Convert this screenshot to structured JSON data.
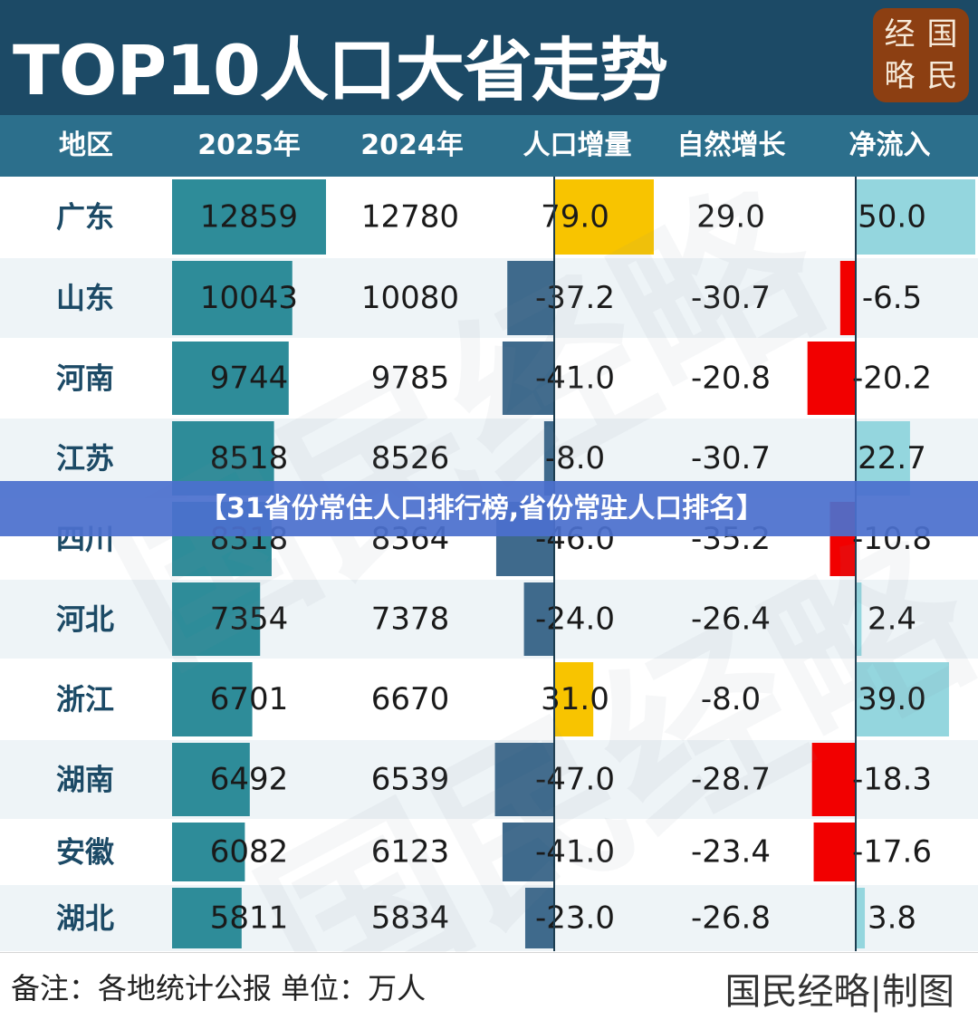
{
  "header": {
    "title": "TOP10人口大省走势",
    "logo_chars": [
      "经",
      "国",
      "略",
      "民"
    ]
  },
  "columns": [
    "地区",
    "2025年",
    "2024年",
    "人口增量",
    "自然增长",
    "净流入"
  ],
  "chart_data": {
    "type": "table",
    "title": "TOP10人口大省走势",
    "columns": [
      "地区",
      "2025年",
      "2024年",
      "人口增量",
      "自然增长",
      "净流入"
    ],
    "rows": [
      {
        "region": "广东",
        "y2025": 12859,
        "y2024": 12780,
        "increase": 79.0,
        "natural": 29.0,
        "net_inflow": 50.0
      },
      {
        "region": "山东",
        "y2025": 10043,
        "y2024": 10080,
        "increase": -37.2,
        "natural": -30.7,
        "net_inflow": -6.5
      },
      {
        "region": "河南",
        "y2025": 9744,
        "y2024": 9785,
        "increase": -41.0,
        "natural": -20.8,
        "net_inflow": -20.2
      },
      {
        "region": "江苏",
        "y2025": 8518,
        "y2024": 8526,
        "increase": -8.0,
        "natural": -30.7,
        "net_inflow": 22.7
      },
      {
        "region": "四川",
        "y2025": 8318,
        "y2024": 8364,
        "increase": -46.0,
        "natural": -35.2,
        "net_inflow": -10.8
      },
      {
        "region": "河北",
        "y2025": 7354,
        "y2024": 7378,
        "increase": -24.0,
        "natural": -26.4,
        "net_inflow": 2.4
      },
      {
        "region": "浙江",
        "y2025": 6701,
        "y2024": 6670,
        "increase": 31.0,
        "natural": -8.0,
        "net_inflow": 39.0
      },
      {
        "region": "湖南",
        "y2025": 6492,
        "y2024": 6539,
        "increase": -47.0,
        "natural": -28.7,
        "net_inflow": -18.3
      },
      {
        "region": "安徽",
        "y2025": 6082,
        "y2024": 6123,
        "increase": -41.0,
        "natural": -23.4,
        "net_inflow": -17.6
      },
      {
        "region": "湖北",
        "y2025": 5811,
        "y2024": 5834,
        "increase": -23.0,
        "natural": -26.8,
        "net_inflow": 3.8
      }
    ]
  },
  "colors": {
    "bar_2025": "#2e8c99",
    "increase_positive": "#f8c400",
    "increase_negative": "#3f6a8c",
    "inflow_positive": "#94d6de",
    "inflow_negative": "#f20000",
    "region_text": "#1c4a66"
  },
  "banner": {
    "text": "【31省份常住人口排行榜,省份常驻人口排名】"
  },
  "footer": {
    "note": "备注：各地统计公报  单位：万人",
    "brand": "国民经略|制图"
  },
  "watermark_text": "国民经略"
}
